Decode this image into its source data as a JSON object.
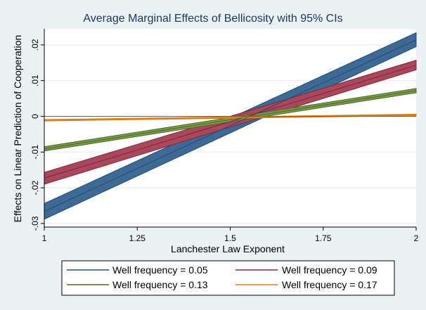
{
  "chart_data": {
    "type": "line",
    "title": "Average Marginal Effects of Bellicosity with 95% CIs",
    "xlabel": "Lanchester Law Exponent",
    "ylabel": "Effects on Linear Prediction of Cooperation",
    "xlim": [
      1,
      2
    ],
    "ylim": [
      -0.031,
      0.0245
    ],
    "x_ticks": [
      {
        "value": 1,
        "label": "1"
      },
      {
        "value": 1.25,
        "label": "1.25"
      },
      {
        "value": 1.5,
        "label": "1.5"
      },
      {
        "value": 1.75,
        "label": "1.75"
      },
      {
        "value": 2,
        "label": "2"
      }
    ],
    "y_ticks": [
      {
        "value": -0.03,
        "label": "-.03"
      },
      {
        "value": -0.02,
        "label": "-.02"
      },
      {
        "value": -0.01,
        "label": "-.01"
      },
      {
        "value": 0,
        "label": "0"
      },
      {
        "value": 0.01,
        "label": ".01"
      },
      {
        "value": 0.02,
        "label": ".02"
      }
    ],
    "grid": true,
    "reference_line": {
      "y": 0,
      "color": "#cc3333"
    },
    "legend_position": "bottom",
    "x": [
      1,
      2
    ],
    "series": [
      {
        "name": "Well frequency = 0.05",
        "color": "#1f4e79",
        "band_color": "#3d6a93",
        "values": [
          -0.0266,
          0.0214
        ],
        "lower": [
          -0.0288,
          0.0195
        ],
        "upper": [
          -0.0244,
          0.0234
        ]
      },
      {
        "name": "Well frequency = 0.09",
        "color": "#8b2238",
        "band_color": "#a8485c",
        "values": [
          -0.0173,
          0.0143
        ],
        "lower": [
          -0.019,
          0.013
        ],
        "upper": [
          -0.0157,
          0.0157
        ]
      },
      {
        "name": "Well frequency = 0.13",
        "color": "#4a6b22",
        "band_color": "#7a9a4a",
        "values": [
          -0.0091,
          0.0072
        ],
        "lower": [
          -0.0097,
          0.0066
        ],
        "upper": [
          -0.0085,
          0.0078
        ]
      },
      {
        "name": "Well frequency = 0.17",
        "color": "#d97f1a",
        "band_color": "#e0902e",
        "values": [
          -0.0011,
          0.0004
        ],
        "lower": [
          -0.0013,
          0.0002
        ],
        "upper": [
          -0.0009,
          0.0006
        ]
      }
    ]
  }
}
